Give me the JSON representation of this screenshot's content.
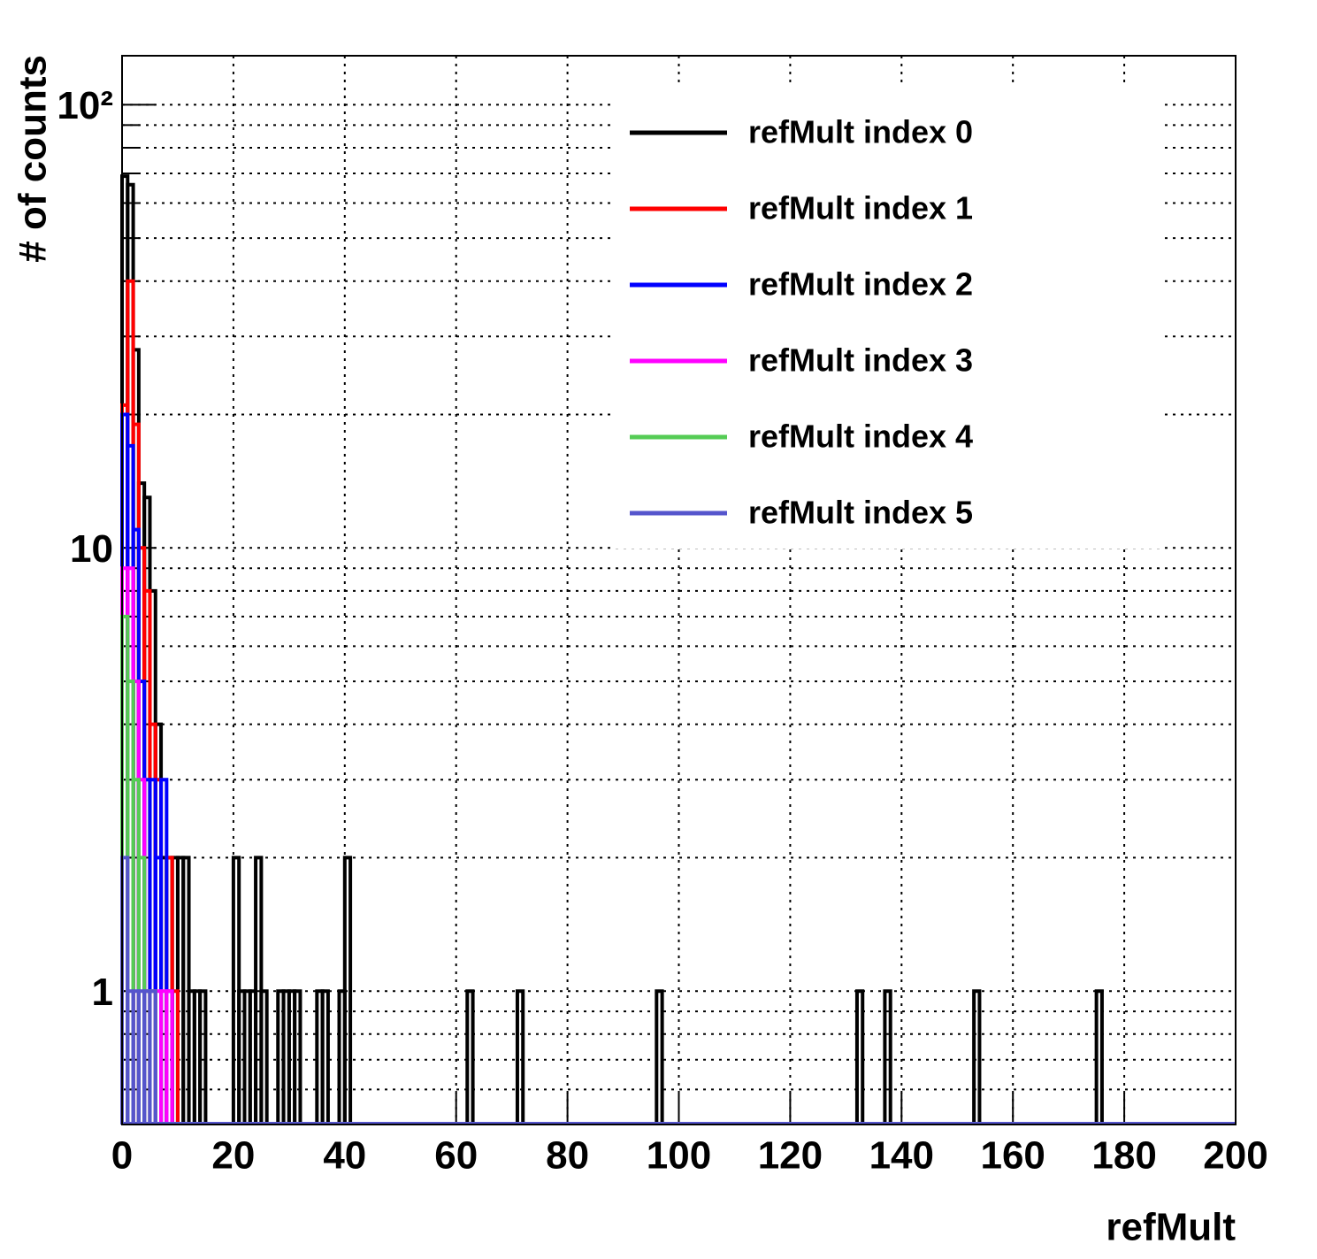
{
  "chart_data": {
    "type": "histogram",
    "x_label": "refMult",
    "y_label": "# of counts",
    "xlim": [
      0,
      200
    ],
    "xticks": [
      0,
      20,
      40,
      60,
      80,
      100,
      120,
      140,
      160,
      180,
      200
    ],
    "ylim": [
      0.5,
      129
    ],
    "log_y": true,
    "grid": true,
    "yticks": [
      1,
      10,
      {
        "value": 100,
        "label": "10²"
      }
    ],
    "yminor_ticks": [
      0.6,
      0.7,
      0.8,
      0.9,
      2,
      3,
      4,
      5,
      6,
      7,
      8,
      9,
      20,
      30,
      40,
      50,
      60,
      70,
      80,
      90
    ],
    "bin_width": 1,
    "legend": "top-right",
    "series": [
      {
        "name": "refMult index 0",
        "color": "#000000",
        "x": [
          0,
          1,
          2,
          3,
          4,
          5,
          6,
          7,
          8,
          9,
          10,
          11,
          12,
          13,
          14,
          20,
          21,
          22,
          23,
          24,
          25,
          28,
          29,
          30,
          31,
          35,
          36,
          39,
          40,
          62,
          71,
          96,
          132,
          137,
          153,
          175
        ],
        "values": [
          69,
          66,
          28,
          14,
          13,
          8,
          4,
          2,
          2,
          2,
          2,
          2,
          1,
          1,
          1,
          2,
          1,
          1,
          1,
          2,
          1,
          1,
          1,
          1,
          1,
          1,
          1,
          1,
          2,
          1,
          1,
          1,
          1,
          1,
          1,
          1
        ]
      },
      {
        "name": "refMult index 1",
        "color": "#ff0000",
        "x": [
          0,
          1,
          2,
          3,
          4,
          5,
          6,
          8,
          9
        ],
        "values": [
          21,
          40,
          19,
          10,
          8,
          4,
          3,
          2,
          1
        ]
      },
      {
        "name": "refMult index 2",
        "color": "#0000ff",
        "x": [
          0,
          1,
          2,
          3,
          4,
          5,
          6,
          7,
          8
        ],
        "values": [
          20,
          17,
          11,
          5,
          3,
          3,
          2,
          3,
          1
        ]
      },
      {
        "name": "refMult index 3",
        "color": "#ff00ff",
        "x": [
          0,
          1,
          2,
          3,
          4,
          5,
          6,
          7,
          8
        ],
        "values": [
          9,
          9,
          5,
          3,
          1,
          1,
          1,
          1,
          1
        ]
      },
      {
        "name": "refMult index 4",
        "color": "#55cc55",
        "x": [
          0,
          1,
          2,
          3,
          4,
          5
        ],
        "values": [
          7,
          5,
          3,
          2,
          1,
          1
        ]
      },
      {
        "name": "refMult index 5",
        "color": "#5555cc",
        "x": [
          0,
          1,
          2,
          3,
          4,
          5
        ],
        "values": [
          2,
          1,
          1,
          1,
          1,
          1
        ]
      }
    ]
  }
}
